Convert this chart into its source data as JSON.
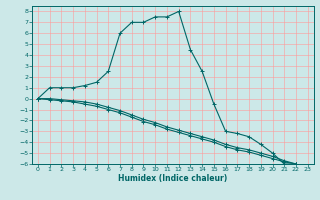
{
  "xlabel": "Humidex (Indice chaleur)",
  "bg_color": "#cce8e8",
  "line_color": "#006666",
  "grid_color": "#ff9999",
  "xlim": [
    -0.5,
    23.5
  ],
  "ylim": [
    -6,
    8.5
  ],
  "xticks": [
    0,
    1,
    2,
    3,
    4,
    5,
    6,
    7,
    8,
    9,
    10,
    11,
    12,
    13,
    14,
    15,
    16,
    17,
    18,
    19,
    20,
    21,
    22,
    23
  ],
  "yticks": [
    -6,
    -5,
    -4,
    -3,
    -2,
    -1,
    0,
    1,
    2,
    3,
    4,
    5,
    6,
    7,
    8
  ],
  "series": [
    {
      "x": [
        0,
        1,
        2,
        3,
        4,
        5,
        6,
        7,
        8,
        9,
        10,
        11,
        12,
        13,
        14,
        15,
        16,
        17,
        18,
        19,
        20,
        21,
        22
      ],
      "y": [
        0,
        1,
        1,
        1,
        1.2,
        1.5,
        2.5,
        6,
        7,
        7,
        7.5,
        7.5,
        8,
        4.5,
        2.5,
        -0.5,
        -3,
        -3.2,
        -3.5,
        -4.2,
        -5,
        -6,
        -6
      ]
    },
    {
      "x": [
        0,
        1,
        2,
        3,
        4,
        5,
        6,
        7,
        8,
        9,
        10,
        11,
        12,
        13,
        14,
        15,
        16,
        17,
        18,
        19,
        20,
        21,
        22
      ],
      "y": [
        0,
        0,
        -0.1,
        -0.2,
        -0.3,
        -0.5,
        -0.8,
        -1.1,
        -1.5,
        -1.9,
        -2.2,
        -2.6,
        -2.9,
        -3.2,
        -3.5,
        -3.8,
        -4.2,
        -4.5,
        -4.7,
        -5.0,
        -5.3,
        -5.7,
        -6
      ]
    },
    {
      "x": [
        0,
        1,
        2,
        3,
        4,
        5,
        6,
        7,
        8,
        9,
        10,
        11,
        12,
        13,
        14,
        15,
        16,
        17,
        18,
        19,
        20,
        21,
        22
      ],
      "y": [
        0,
        -0.1,
        -0.2,
        -0.3,
        -0.5,
        -0.7,
        -1.0,
        -1.3,
        -1.7,
        -2.1,
        -2.4,
        -2.8,
        -3.1,
        -3.4,
        -3.7,
        -4.0,
        -4.4,
        -4.7,
        -4.9,
        -5.2,
        -5.5,
        -5.8,
        -6
      ]
    }
  ]
}
